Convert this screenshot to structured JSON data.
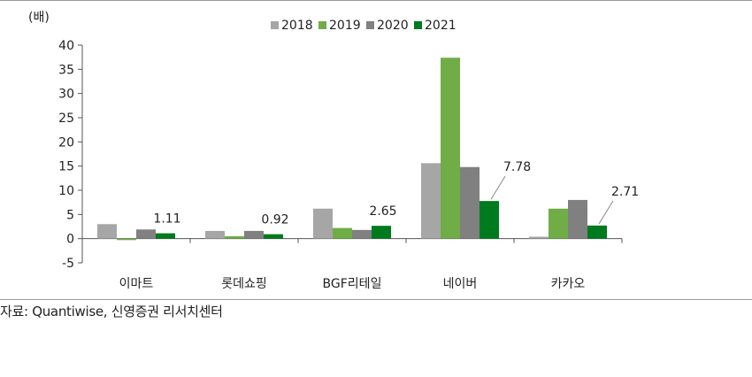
{
  "chart_data": {
    "type": "bar",
    "ylabel": "(배)",
    "ylim": [
      -5,
      40
    ],
    "yticks": [
      -5,
      0,
      5,
      10,
      15,
      20,
      25,
      30,
      35,
      40
    ],
    "categories": [
      "이마트",
      "롯데쇼핑",
      "BGF리테일",
      "네이버",
      "카카오"
    ],
    "series": [
      {
        "name": "2018",
        "color": "#a6a6a6",
        "values": [
          3.0,
          1.6,
          6.2,
          15.6,
          0.4
        ]
      },
      {
        "name": "2019",
        "color": "#70ad47",
        "values": [
          -0.3,
          0.5,
          2.2,
          37.4,
          6.2
        ]
      },
      {
        "name": "2020",
        "color": "#808080",
        "values": [
          1.9,
          1.6,
          1.8,
          14.8,
          8.0
        ]
      },
      {
        "name": "2021",
        "color": "#007a1e",
        "values": [
          1.11,
          0.92,
          2.65,
          7.78,
          2.71
        ]
      }
    ],
    "data_labels": [
      "1.11",
      "0.92",
      "2.65",
      "7.78",
      "2.71"
    ],
    "legend_position": "top-center",
    "grid": false
  },
  "source": "자료: Quantiwise, 신영증권 리서치센터"
}
